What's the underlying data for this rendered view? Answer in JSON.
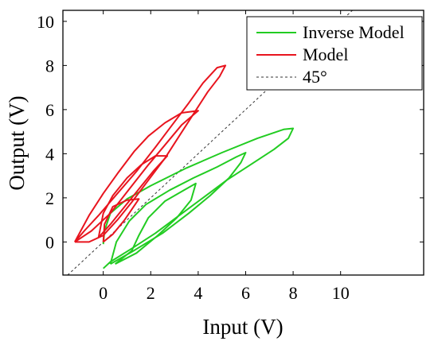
{
  "chart_data": {
    "type": "line",
    "xlabel": "Input (V)",
    "ylabel": "Output (V)",
    "xlim": [
      -1.7,
      13.5
    ],
    "ylim": [
      -1.5,
      10.5
    ],
    "xticks": [
      "0",
      "2",
      "4",
      "6",
      "8",
      "10"
    ],
    "yticks": [
      "0",
      "2",
      "4",
      "6",
      "8",
      "10"
    ],
    "grid": false,
    "legend_position": "top-right",
    "legend": [
      "Inverse Model",
      "Model",
      "45°"
    ],
    "colors": {
      "inverse": "#22cc22",
      "model": "#e8141e",
      "diagonal": "#333333"
    },
    "series": [
      {
        "name": "Inverse Model",
        "loops": [
          [
            [
              0.0,
              -1.2
            ],
            [
              0.3,
              -0.9
            ],
            [
              1.2,
              -0.3
            ],
            [
              2.2,
              0.4
            ],
            [
              3.2,
              1.2
            ],
            [
              4.2,
              2.0
            ],
            [
              5.2,
              2.8
            ],
            [
              6.2,
              3.5
            ],
            [
              7.2,
              4.2
            ],
            [
              7.8,
              4.7
            ],
            [
              8.0,
              5.15
            ],
            [
              7.6,
              5.1
            ],
            [
              6.5,
              4.7
            ],
            [
              5.0,
              4.05
            ],
            [
              3.5,
              3.35
            ],
            [
              2.0,
              2.55
            ],
            [
              1.0,
              1.95
            ],
            [
              0.3,
              1.3
            ],
            [
              0.05,
              0.5
            ],
            [
              0.0,
              -0.1
            ]
          ],
          [
            [
              0.3,
              -1.0
            ],
            [
              1.2,
              -0.45
            ],
            [
              2.5,
              0.4
            ],
            [
              3.6,
              1.3
            ],
            [
              4.5,
              2.1
            ],
            [
              5.3,
              2.9
            ],
            [
              5.8,
              3.6
            ],
            [
              6.0,
              4.05
            ],
            [
              5.6,
              3.85
            ],
            [
              4.8,
              3.4
            ],
            [
              3.8,
              2.9
            ],
            [
              2.8,
              2.35
            ],
            [
              1.8,
              1.7
            ],
            [
              1.1,
              0.95
            ],
            [
              0.55,
              0.0
            ],
            [
              0.3,
              -1.0
            ]
          ],
          [
            [
              0.5,
              -1.0
            ],
            [
              1.4,
              -0.5
            ],
            [
              2.3,
              0.3
            ],
            [
              3.1,
              1.1
            ],
            [
              3.7,
              1.9
            ],
            [
              3.9,
              2.65
            ],
            [
              3.4,
              2.35
            ],
            [
              2.6,
              1.85
            ],
            [
              1.9,
              1.1
            ],
            [
              1.5,
              0.3
            ],
            [
              1.2,
              -0.4
            ],
            [
              0.5,
              -1.0
            ]
          ]
        ]
      },
      {
        "name": "Model",
        "loops": [
          [
            [
              -1.2,
              0.0
            ],
            [
              -0.8,
              0.5
            ],
            [
              -0.2,
              1.2
            ],
            [
              0.6,
              2.2
            ],
            [
              1.4,
              3.2
            ],
            [
              2.2,
              4.3
            ],
            [
              2.9,
              5.3
            ],
            [
              3.6,
              6.3
            ],
            [
              4.2,
              7.2
            ],
            [
              4.8,
              7.9
            ],
            [
              5.15,
              8.0
            ],
            [
              4.9,
              7.5
            ],
            [
              4.4,
              6.8
            ],
            [
              3.8,
              5.8
            ],
            [
              3.2,
              4.8
            ],
            [
              2.6,
              3.8
            ],
            [
              1.9,
              2.8
            ],
            [
              1.2,
              1.8
            ],
            [
              0.6,
              1.0
            ],
            [
              0.0,
              0.3
            ],
            [
              -0.6,
              0.0
            ],
            [
              -1.2,
              0.0
            ]
          ],
          [
            [
              -1.2,
              0.0
            ],
            [
              -0.5,
              0.5
            ],
            [
              0.3,
              1.3
            ],
            [
              1.1,
              2.4
            ],
            [
              1.9,
              3.5
            ],
            [
              2.6,
              4.4
            ],
            [
              3.3,
              5.3
            ],
            [
              4.0,
              5.95
            ],
            [
              3.3,
              5.85
            ],
            [
              2.6,
              5.4
            ],
            [
              1.9,
              4.8
            ],
            [
              1.3,
              4.1
            ],
            [
              0.6,
              3.1
            ],
            [
              0.0,
              2.2
            ],
            [
              -0.6,
              1.2
            ],
            [
              -1.2,
              0.0
            ]
          ],
          [
            [
              -0.2,
              0.2
            ],
            [
              0.3,
              0.8
            ],
            [
              0.9,
              1.6
            ],
            [
              1.5,
              2.4
            ],
            [
              2.1,
              3.2
            ],
            [
              2.7,
              3.9
            ],
            [
              2.2,
              3.9
            ],
            [
              1.6,
              3.5
            ],
            [
              1.0,
              2.9
            ],
            [
              0.4,
              2.1
            ],
            [
              0.0,
              1.3
            ],
            [
              -0.2,
              0.2
            ]
          ],
          [
            [
              0.0,
              0.0
            ],
            [
              0.4,
              0.35
            ],
            [
              0.9,
              1.0
            ],
            [
              1.5,
              1.95
            ],
            [
              1.0,
              1.9
            ],
            [
              0.4,
              1.6
            ],
            [
              0.05,
              0.8
            ],
            [
              0.0,
              0.0
            ]
          ]
        ]
      },
      {
        "name": "45°",
        "points": [
          [
            -1.5,
            -1.5
          ],
          [
            10.5,
            10.5
          ]
        ]
      }
    ]
  }
}
